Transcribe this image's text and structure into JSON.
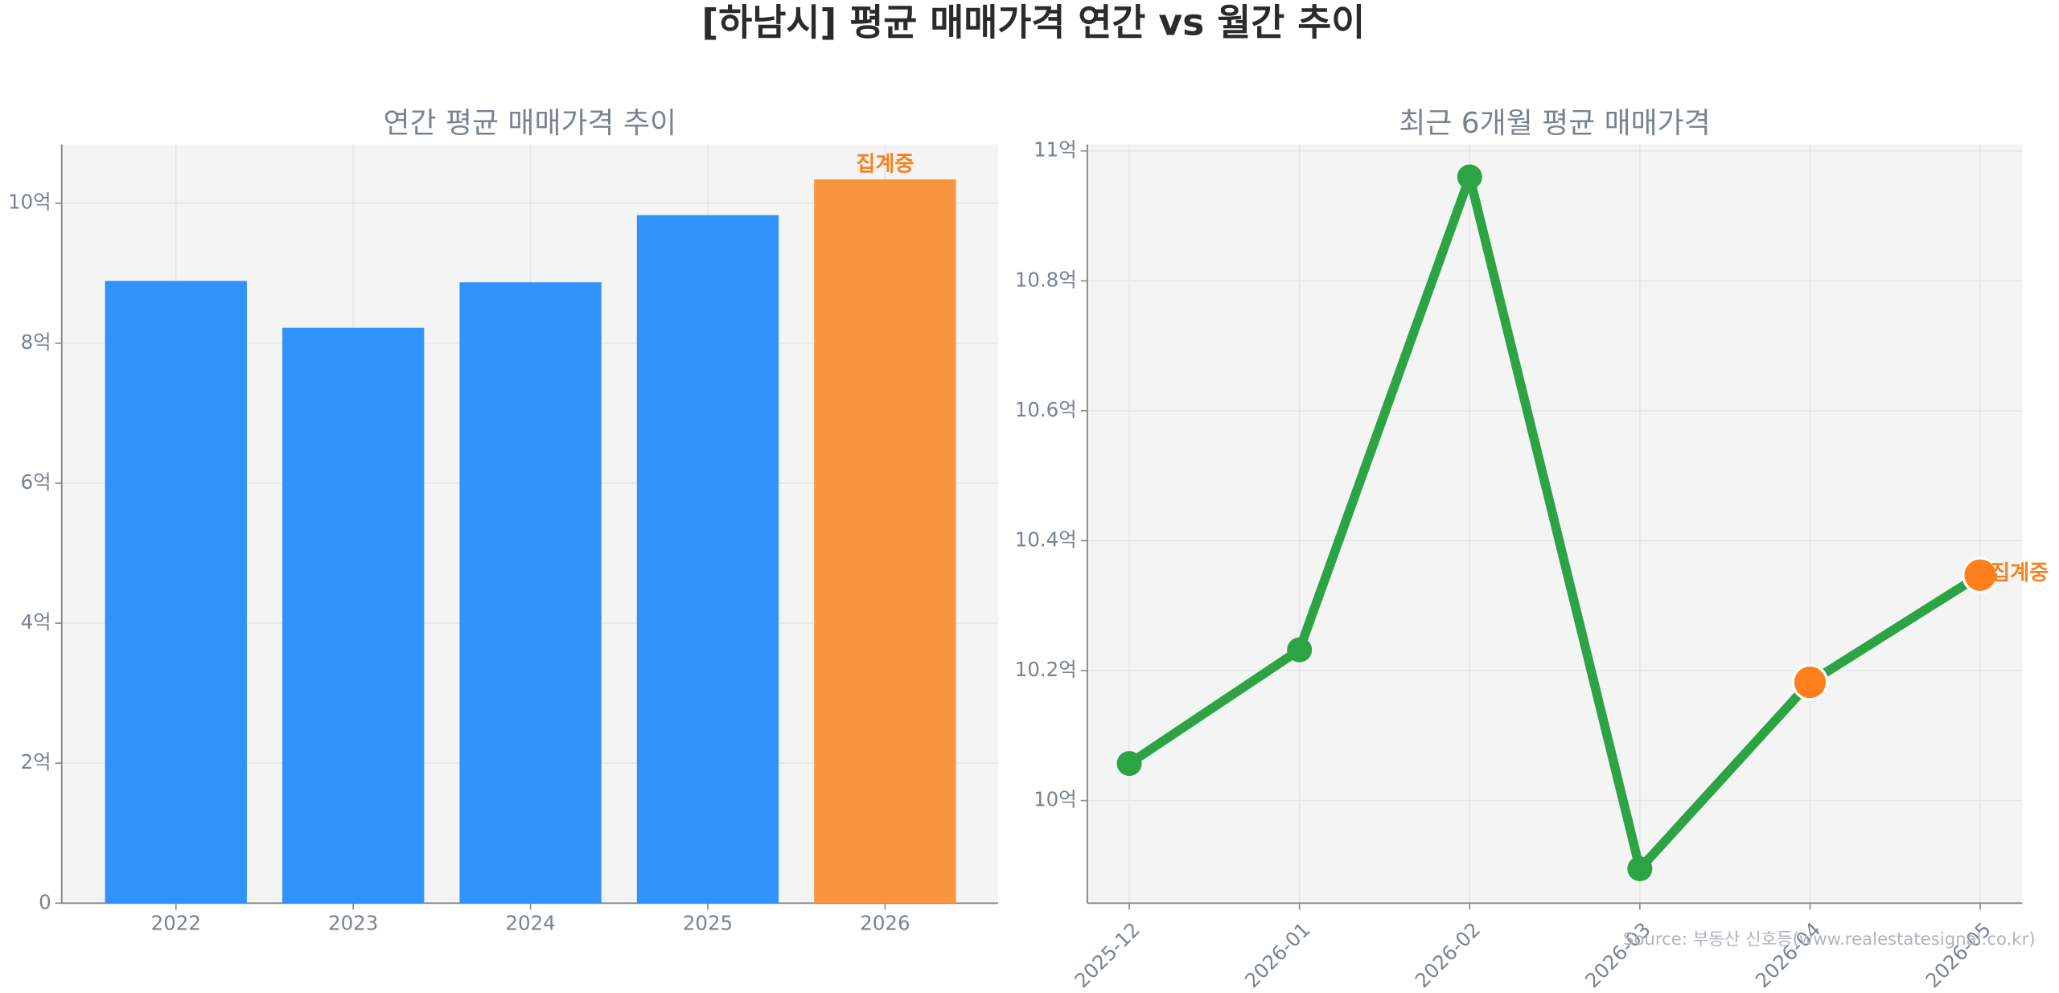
{
  "title": "[하남시] 평균 매매가격 연간 vs 월간 추이",
  "source": "Source: 부동산 신호등(www.realestatesignal.co.kr)",
  "chart_data": [
    {
      "type": "bar",
      "title": "연간 평균 매매가격 추이",
      "categories": [
        "2022",
        "2023",
        "2024",
        "2025",
        "2026"
      ],
      "values": [
        8.89,
        8.22,
        8.87,
        9.83,
        10.34
      ],
      "colors": [
        "#3192fb",
        "#3192fb",
        "#3192fb",
        "#3192fb",
        "#f9953f"
      ],
      "ylim": [
        0,
        10.84
      ],
      "yticks": [
        {
          "value": 0,
          "label": "0"
        },
        {
          "value": 2,
          "label": "2억"
        },
        {
          "value": 4,
          "label": "4억"
        },
        {
          "value": 6,
          "label": "6억"
        },
        {
          "value": 8,
          "label": "8억"
        },
        {
          "value": 10,
          "label": "10억"
        }
      ],
      "grid": true,
      "annotations": [
        {
          "text": "집계중",
          "category": "2026",
          "color": "#f5821f"
        }
      ]
    },
    {
      "type": "line",
      "title": "최근 6개월 평균 매매가격",
      "categories": [
        "2025-12",
        "2026-01",
        "2026-02",
        "2026-03",
        "2026-04",
        "2026-05"
      ],
      "values": [
        10.057,
        10.232,
        10.96,
        9.895,
        10.182,
        10.347
      ],
      "color": "#2ca444",
      "marker_colors": [
        "#2ca444",
        "#2ca444",
        "#2ca444",
        "#2ca444",
        "#fe7f1c",
        "#fe7f1c"
      ],
      "ylim": [
        9.842,
        11.01
      ],
      "yticks": [
        {
          "value": 10,
          "label": "10억"
        },
        {
          "value": 10.2,
          "label": "10.2억"
        },
        {
          "value": 10.4,
          "label": "10.4억"
        },
        {
          "value": 10.6,
          "label": "10.6억"
        },
        {
          "value": 10.8,
          "label": "10.8억"
        },
        {
          "value": 11,
          "label": "11억"
        }
      ],
      "grid": true,
      "annotations": [
        {
          "text": "집계중",
          "category": "2026-05",
          "color": "#f5821f"
        }
      ]
    }
  ]
}
